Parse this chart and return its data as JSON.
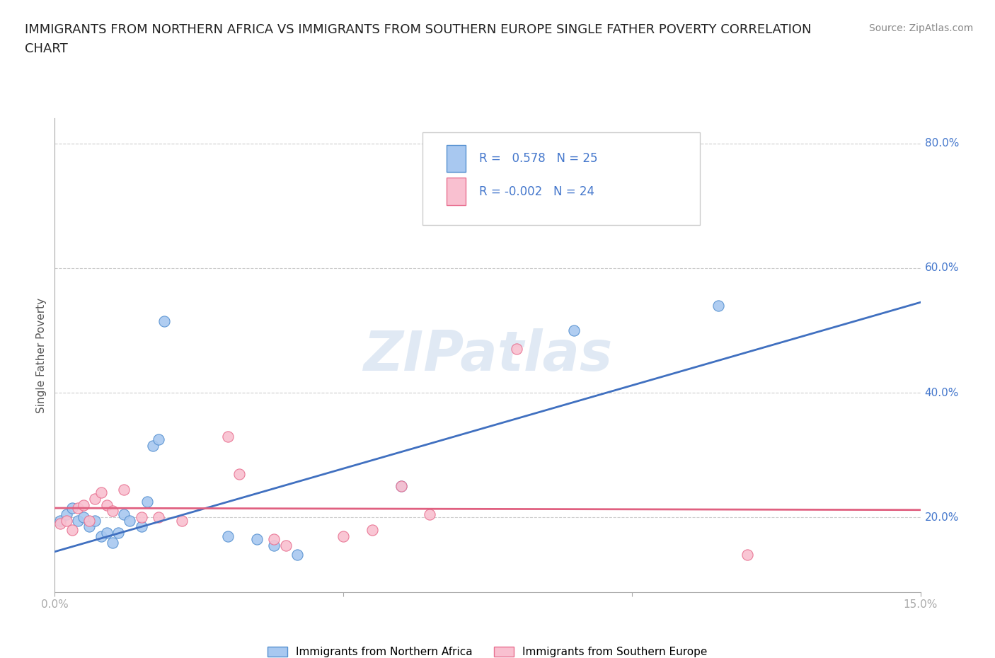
{
  "title_line1": "IMMIGRANTS FROM NORTHERN AFRICA VS IMMIGRANTS FROM SOUTHERN EUROPE SINGLE FATHER POVERTY CORRELATION",
  "title_line2": "CHART",
  "source_text": "Source: ZipAtlas.com",
  "ylabel": "Single Father Poverty",
  "xlim": [
    0.0,
    0.15
  ],
  "ylim": [
    0.08,
    0.84
  ],
  "xtick_vals": [
    0.0,
    0.05,
    0.1,
    0.15
  ],
  "xticklabels": [
    "0.0%",
    "",
    "",
    "15.0%"
  ],
  "ytick_values_right": [
    0.8,
    0.6,
    0.4,
    0.2
  ],
  "ytick_labels_right": [
    "80.0%",
    "60.0%",
    "40.0%",
    "20.0%"
  ],
  "r_blue": 0.578,
  "n_blue": 25,
  "r_pink": -0.002,
  "n_pink": 24,
  "watermark": "ZIPatlas",
  "blue_fill": "#A8C8F0",
  "pink_fill": "#F9C0D0",
  "blue_edge": "#5590D0",
  "pink_edge": "#E87090",
  "blue_line_color": "#4070C0",
  "pink_line_color": "#E06080",
  "blue_scatter": [
    [
      0.001,
      0.195
    ],
    [
      0.002,
      0.205
    ],
    [
      0.003,
      0.215
    ],
    [
      0.004,
      0.195
    ],
    [
      0.005,
      0.2
    ],
    [
      0.006,
      0.185
    ],
    [
      0.007,
      0.195
    ],
    [
      0.008,
      0.17
    ],
    [
      0.009,
      0.175
    ],
    [
      0.01,
      0.16
    ],
    [
      0.011,
      0.175
    ],
    [
      0.012,
      0.205
    ],
    [
      0.013,
      0.195
    ],
    [
      0.015,
      0.185
    ],
    [
      0.016,
      0.225
    ],
    [
      0.017,
      0.315
    ],
    [
      0.018,
      0.325
    ],
    [
      0.019,
      0.515
    ],
    [
      0.03,
      0.17
    ],
    [
      0.035,
      0.165
    ],
    [
      0.038,
      0.155
    ],
    [
      0.042,
      0.14
    ],
    [
      0.06,
      0.25
    ],
    [
      0.09,
      0.5
    ],
    [
      0.115,
      0.54
    ]
  ],
  "pink_scatter": [
    [
      0.001,
      0.19
    ],
    [
      0.002,
      0.195
    ],
    [
      0.003,
      0.18
    ],
    [
      0.004,
      0.215
    ],
    [
      0.005,
      0.22
    ],
    [
      0.006,
      0.195
    ],
    [
      0.007,
      0.23
    ],
    [
      0.008,
      0.24
    ],
    [
      0.009,
      0.22
    ],
    [
      0.01,
      0.21
    ],
    [
      0.012,
      0.245
    ],
    [
      0.015,
      0.2
    ],
    [
      0.018,
      0.2
    ],
    [
      0.022,
      0.195
    ],
    [
      0.03,
      0.33
    ],
    [
      0.032,
      0.27
    ],
    [
      0.038,
      0.165
    ],
    [
      0.04,
      0.155
    ],
    [
      0.05,
      0.17
    ],
    [
      0.055,
      0.18
    ],
    [
      0.06,
      0.25
    ],
    [
      0.065,
      0.205
    ],
    [
      0.08,
      0.47
    ],
    [
      0.12,
      0.14
    ]
  ],
  "blue_line_x": [
    0.0,
    0.15
  ],
  "blue_line_y": [
    0.145,
    0.545
  ],
  "pink_line_x": [
    0.0,
    0.15
  ],
  "pink_line_y": [
    0.215,
    0.212
  ],
  "legend_label_blue": "Immigrants from Northern Africa",
  "legend_label_pink": "Immigrants from Southern Europe",
  "grid_color": "#CCCCCC",
  "background_color": "#FFFFFF",
  "title_fontsize": 13,
  "label_fontsize": 11,
  "tick_fontsize": 11,
  "source_fontsize": 10,
  "legend_text_color": "#4477CC"
}
